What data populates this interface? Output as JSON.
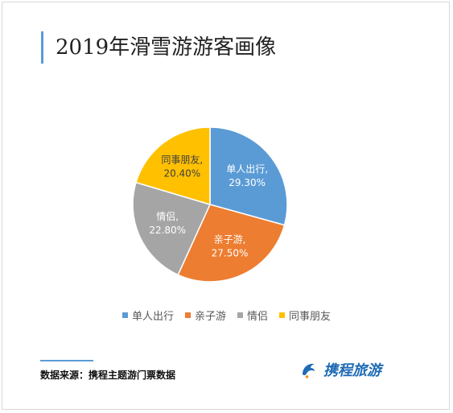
{
  "header": {
    "title": "2019年滑雪游游客画像"
  },
  "chart_data": {
    "type": "pie",
    "title": "2019年滑雪游游客画像",
    "categories": [
      "单人出行",
      "亲子游",
      "情侣",
      "同事朋友"
    ],
    "values": [
      29.3,
      27.5,
      22.8,
      20.4
    ],
    "value_labels": [
      "29.30%",
      "27.50%",
      "22.80%",
      "20.40%"
    ],
    "colors": [
      "#5b9bd5",
      "#ed7d31",
      "#a5a5a5",
      "#ffc000"
    ],
    "legend_position": "bottom"
  },
  "footer": {
    "source": "数据来源：携程主题游门票数据",
    "logo_text": "携程旅游",
    "logo_icon": "dolphin-icon"
  }
}
